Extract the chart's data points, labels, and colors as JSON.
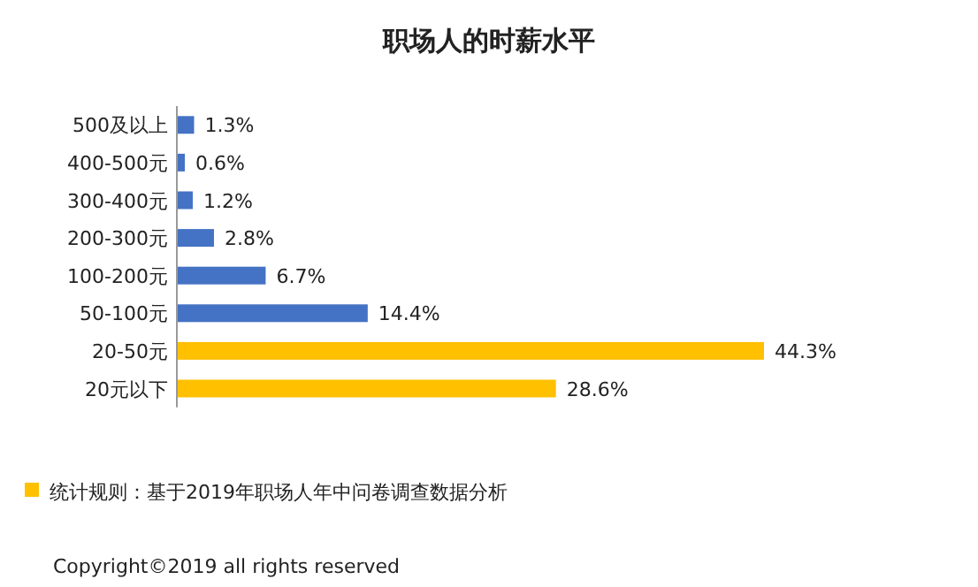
{
  "chart_data": {
    "type": "bar",
    "orientation": "horizontal",
    "title": "职场人的时薪水平",
    "categories": [
      "500及以上",
      "400-500元",
      "300-400元",
      "200-300元",
      "100-200元",
      "50-100元",
      "20-50元",
      "20元以下"
    ],
    "values": [
      1.3,
      0.6,
      1.2,
      2.8,
      6.7,
      14.4,
      44.3,
      28.6
    ],
    "value_labels": [
      "1.3%",
      "0.6%",
      "1.2%",
      "2.8%",
      "6.7%",
      "14.4%",
      "44.3%",
      "28.6%"
    ],
    "colors": [
      "#4472c4",
      "#4472c4",
      "#4472c4",
      "#4472c4",
      "#4472c4",
      "#4472c4",
      "#ffc000",
      "#ffc000"
    ],
    "annotations": [
      "统计规则：基于2019年职场人年中问卷调查数据分析",
      "Copyright©2019 all rights reserved"
    ]
  }
}
